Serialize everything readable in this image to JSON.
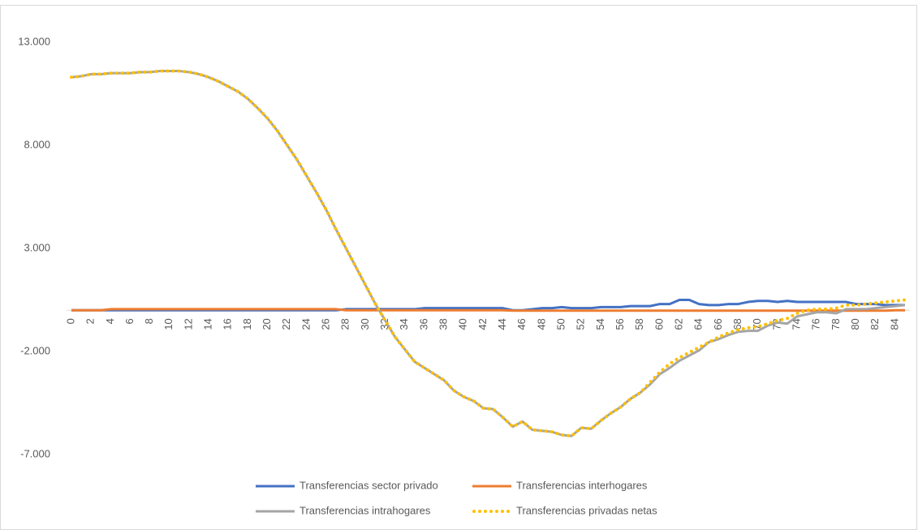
{
  "chart_data": {
    "type": "line",
    "x": [
      0,
      1,
      2,
      3,
      4,
      5,
      6,
      7,
      8,
      9,
      10,
      11,
      12,
      13,
      14,
      15,
      16,
      17,
      18,
      19,
      20,
      21,
      22,
      23,
      24,
      25,
      26,
      27,
      28,
      29,
      30,
      31,
      32,
      33,
      34,
      35,
      36,
      37,
      38,
      39,
      40,
      41,
      42,
      43,
      44,
      45,
      46,
      47,
      48,
      49,
      50,
      51,
      52,
      53,
      54,
      55,
      56,
      57,
      58,
      59,
      60,
      61,
      62,
      63,
      64,
      65,
      66,
      67,
      68,
      69,
      70,
      71,
      72,
      73,
      74,
      75,
      76,
      77,
      78,
      79,
      80,
      81,
      82,
      83,
      84,
      85
    ],
    "xlim": [
      0,
      85
    ],
    "xticks": [
      0,
      2,
      4,
      6,
      8,
      10,
      12,
      14,
      16,
      18,
      20,
      22,
      24,
      26,
      28,
      30,
      32,
      34,
      36,
      38,
      40,
      42,
      44,
      46,
      48,
      50,
      52,
      54,
      56,
      58,
      60,
      62,
      64,
      66,
      68,
      70,
      72,
      74,
      76,
      78,
      80,
      82,
      84
    ],
    "ylim": [
      -7000,
      13000
    ],
    "yticks": [
      {
        "value": -7000,
        "label": "-7.000"
      },
      {
        "value": -2000,
        "label": "-2.000"
      },
      {
        "value": 3000,
        "label": "3.000"
      },
      {
        "value": 8000,
        "label": "8.000"
      },
      {
        "value": 13000,
        "label": "13.000"
      }
    ],
    "grid": false,
    "legend": "bottom",
    "series": [
      {
        "name": "Transferencias sector privado",
        "color": "#4472c4",
        "style": "solid",
        "values": [
          0,
          0,
          0,
          0,
          0,
          0,
          0,
          0,
          0,
          0,
          0,
          0,
          0,
          0,
          0,
          0,
          0,
          0,
          0,
          0,
          0,
          0,
          0,
          0,
          0,
          0,
          0,
          0,
          50,
          50,
          50,
          50,
          50,
          50,
          50,
          50,
          100,
          100,
          100,
          100,
          100,
          100,
          100,
          100,
          100,
          0,
          0,
          50,
          100,
          100,
          150,
          100,
          100,
          100,
          150,
          150,
          150,
          200,
          200,
          200,
          300,
          300,
          500,
          500,
          300,
          250,
          250,
          300,
          300,
          400,
          450,
          450,
          400,
          450,
          400,
          400,
          400,
          400,
          400,
          400,
          300,
          300,
          300,
          250,
          250,
          250
        ]
      },
      {
        "name": "Transferencias interhogares",
        "color": "#ed7d31",
        "style": "solid",
        "values": [
          0,
          0,
          0,
          0,
          50,
          50,
          50,
          50,
          50,
          50,
          50,
          50,
          50,
          50,
          50,
          50,
          50,
          50,
          50,
          50,
          50,
          50,
          50,
          50,
          50,
          50,
          50,
          50,
          0,
          0,
          0,
          0,
          0,
          0,
          0,
          0,
          0,
          0,
          0,
          0,
          0,
          0,
          0,
          0,
          0,
          -20,
          -20,
          -20,
          -20,
          -20,
          -20,
          -20,
          -20,
          -20,
          -20,
          -20,
          -20,
          -20,
          -20,
          -20,
          -20,
          -20,
          -20,
          -20,
          -20,
          -20,
          -20,
          -20,
          -20,
          -20,
          -20,
          -20,
          -20,
          -20,
          -20,
          -20,
          -20,
          -20,
          -20,
          -20,
          -20,
          -20,
          -20,
          -20,
          0,
          0
        ]
      },
      {
        "name": "Transferencias intrahogares",
        "color": "#a5a5a5",
        "style": "solid",
        "values": [
          11300,
          11350,
          11450,
          11450,
          11500,
          11500,
          11500,
          11550,
          11550,
          11600,
          11600,
          11600,
          11550,
          11450,
          11300,
          11100,
          10850,
          10600,
          10250,
          9800,
          9300,
          8700,
          8000,
          7300,
          6500,
          5700,
          4850,
          3900,
          3000,
          2100,
          1200,
          300,
          -500,
          -1300,
          -1900,
          -2500,
          -2800,
          -3100,
          -3400,
          -3900,
          -4200,
          -4400,
          -4750,
          -4800,
          -5200,
          -5650,
          -5400,
          -5800,
          -5850,
          -5900,
          -6050,
          -6100,
          -5700,
          -5750,
          -5350,
          -5000,
          -4700,
          -4300,
          -4000,
          -3600,
          -3100,
          -2800,
          -2450,
          -2200,
          -1950,
          -1550,
          -1400,
          -1200,
          -1050,
          -1000,
          -1000,
          -750,
          -600,
          -650,
          -300,
          -200,
          -100,
          -100,
          -150,
          50,
          50,
          50,
          100,
          150,
          200,
          250
        ]
      },
      {
        "name": "Transferencias privadas netas",
        "color": "#ffc000",
        "style": "dotted",
        "values": [
          11300,
          11350,
          11450,
          11450,
          11500,
          11500,
          11500,
          11550,
          11550,
          11600,
          11600,
          11600,
          11550,
          11450,
          11300,
          11100,
          10850,
          10600,
          10250,
          9800,
          9300,
          8700,
          8000,
          7300,
          6500,
          5700,
          4850,
          3900,
          3000,
          2100,
          1200,
          300,
          -500,
          -1300,
          -1900,
          -2500,
          -2800,
          -3100,
          -3400,
          -3900,
          -4200,
          -4400,
          -4750,
          -4800,
          -5200,
          -5650,
          -5400,
          -5800,
          -5850,
          -5900,
          -6050,
          -6100,
          -5700,
          -5750,
          -5350,
          -5000,
          -4700,
          -4300,
          -4000,
          -3500,
          -3000,
          -2600,
          -2300,
          -2050,
          -1800,
          -1550,
          -1300,
          -1100,
          -950,
          -850,
          -800,
          -650,
          -500,
          -400,
          -150,
          0,
          50,
          50,
          100,
          250,
          250,
          300,
          350,
          400,
          450,
          500
        ]
      }
    ]
  }
}
